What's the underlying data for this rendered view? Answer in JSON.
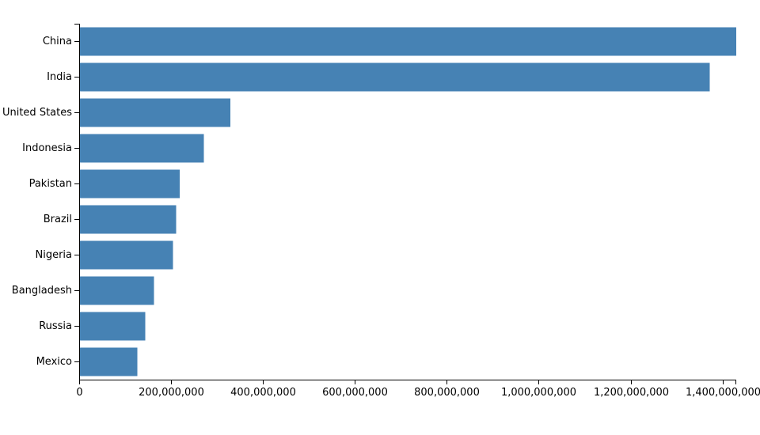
{
  "chart_data": {
    "type": "bar",
    "orientation": "horizontal",
    "title": "",
    "xlabel": "",
    "ylabel": "",
    "categories": [
      "China",
      "India",
      "United States",
      "Indonesia",
      "Pakistan",
      "Brazil",
      "Nigeria",
      "Bangladesh",
      "Russia",
      "Mexico"
    ],
    "values": [
      1430000000,
      1372000000,
      329000000,
      271000000,
      219000000,
      211000000,
      204000000,
      163000000,
      144000000,
      127000000
    ],
    "xlim": [
      0,
      1430000000
    ],
    "x_ticks": [
      0,
      200000000,
      400000000,
      600000000,
      800000000,
      1000000000,
      1200000000,
      1400000000
    ],
    "x_tick_labels": [
      "0",
      "200,000,000",
      "400,000,000",
      "600,000,000",
      "800,000,000",
      "1,000,000,000",
      "1,200,000,000",
      "1,400,000,000"
    ],
    "bar_color": "#4682b4",
    "grid": false,
    "legend": "none"
  }
}
